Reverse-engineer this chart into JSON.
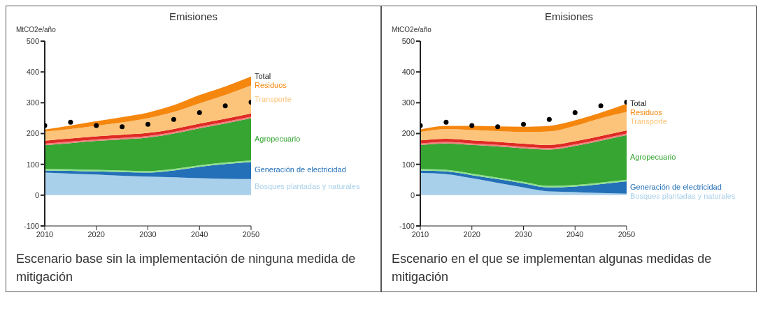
{
  "chart_data": [
    {
      "type": "area",
      "stacked": true,
      "title": "Emisiones",
      "ylabel": "MtCO2e/año",
      "x": [
        2010,
        2015,
        2020,
        2025,
        2030,
        2035,
        2040,
        2045,
        2050
      ],
      "xlim": [
        2010,
        2050
      ],
      "xticks": [
        2010,
        2020,
        2030,
        2040,
        2050
      ],
      "ylim": [
        -100,
        500
      ],
      "yticks": [
        -100,
        0,
        100,
        200,
        300,
        400,
        500
      ],
      "grid": false,
      "legend": false,
      "annotations": [
        "Escenario base sin la implementación de ninguna medida de mitigación",
        {
          "text": "Total",
          "x": 2050,
          "y": 385
        }
      ],
      "series": [
        {
          "name": "Bosques plantadas y naturales",
          "color": "#a9d0ea",
          "values": [
            73,
            70,
            67,
            63,
            60,
            58,
            55,
            53,
            52
          ]
        },
        {
          "name": "Generación de electricidad",
          "color": "#2370b8",
          "values": [
            7,
            9,
            10,
            12,
            13,
            22,
            37,
            48,
            56
          ]
        },
        {
          "color": "#8fe08a",
          "values": [
            5,
            5,
            5,
            5,
            5,
            5,
            5,
            5,
            5
          ]
        },
        {
          "name": "Agropecuario",
          "color": "#36a532",
          "values": [
            77,
            85,
            94,
            101,
            109,
            115,
            120,
            127,
            137
          ]
        },
        {
          "color": "#f08080",
          "values": [
            5,
            5,
            5,
            5,
            5,
            5,
            5,
            5,
            5
          ]
        },
        {
          "color": "#e02a24",
          "values": [
            10,
            10,
            10,
            10,
            10,
            10,
            10,
            10,
            10
          ]
        },
        {
          "name": "Transporte",
          "color": "#fcc47a",
          "values": [
            29,
            31,
            34,
            40,
            48,
            55,
            66,
            77,
            91
          ]
        },
        {
          "name": "Residuos",
          "color": "#f5870f",
          "values": [
            7,
            11,
            15,
            17,
            18,
            22,
            27,
            28,
            29
          ]
        },
        {
          "type": "scatter",
          "color": "#000000",
          "values": [
            226,
            237,
            226,
            222,
            230,
            246,
            268,
            290,
            302
          ]
        }
      ]
    },
    {
      "type": "area",
      "stacked": true,
      "title": "Emisiones",
      "ylabel": "MtCO2e/año",
      "x": [
        2010,
        2015,
        2020,
        2025,
        2030,
        2035,
        2040,
        2045,
        2050
      ],
      "xlim": [
        2010,
        2050
      ],
      "xticks": [
        2010,
        2020,
        2030,
        2040,
        2050
      ],
      "ylim": [
        -100,
        500
      ],
      "yticks": [
        -100,
        0,
        100,
        200,
        300,
        400,
        500
      ],
      "grid": false,
      "legend": false,
      "annotations": [
        "Escenario en el que se implementan algunas medidas de mitigación",
        {
          "text": "Total",
          "x": 2050,
          "y": 297
        }
      ],
      "series": [
        {
          "name": "Bosques plantadas y naturales",
          "color": "#a9d0ea",
          "values": [
            72,
            68,
            55,
            40,
            25,
            12,
            10,
            7,
            5
          ]
        },
        {
          "name": "Generación de electricidad",
          "color": "#2370b8",
          "values": [
            8,
            9,
            10,
            12,
            13,
            13,
            18,
            29,
            40
          ]
        },
        {
          "color": "#8fe08a",
          "values": [
            5,
            5,
            5,
            5,
            5,
            5,
            5,
            5,
            5
          ]
        },
        {
          "name": "Agropecuario",
          "color": "#36a532",
          "values": [
            78,
            86,
            93,
            101,
            109,
            118,
            127,
            136,
            145
          ]
        },
        {
          "color": "#f08080",
          "values": [
            5,
            5,
            5,
            5,
            5,
            5,
            5,
            5,
            5
          ]
        },
        {
          "color": "#e02a24",
          "values": [
            10,
            10,
            10,
            10,
            10,
            10,
            10,
            10,
            10
          ]
        },
        {
          "name": "Transporte",
          "color": "#fcc47a",
          "values": [
            27,
            32,
            34,
            35,
            38,
            44,
            50,
            58,
            60
          ]
        },
        {
          "name": "Residuos",
          "color": "#f5870f",
          "values": [
            8,
            10,
            13,
            15,
            17,
            18,
            18,
            18,
            27
          ]
        },
        {
          "type": "scatter",
          "color": "#000000",
          "values": [
            226,
            237,
            226,
            222,
            230,
            246,
            268,
            290,
            302
          ]
        }
      ]
    }
  ]
}
